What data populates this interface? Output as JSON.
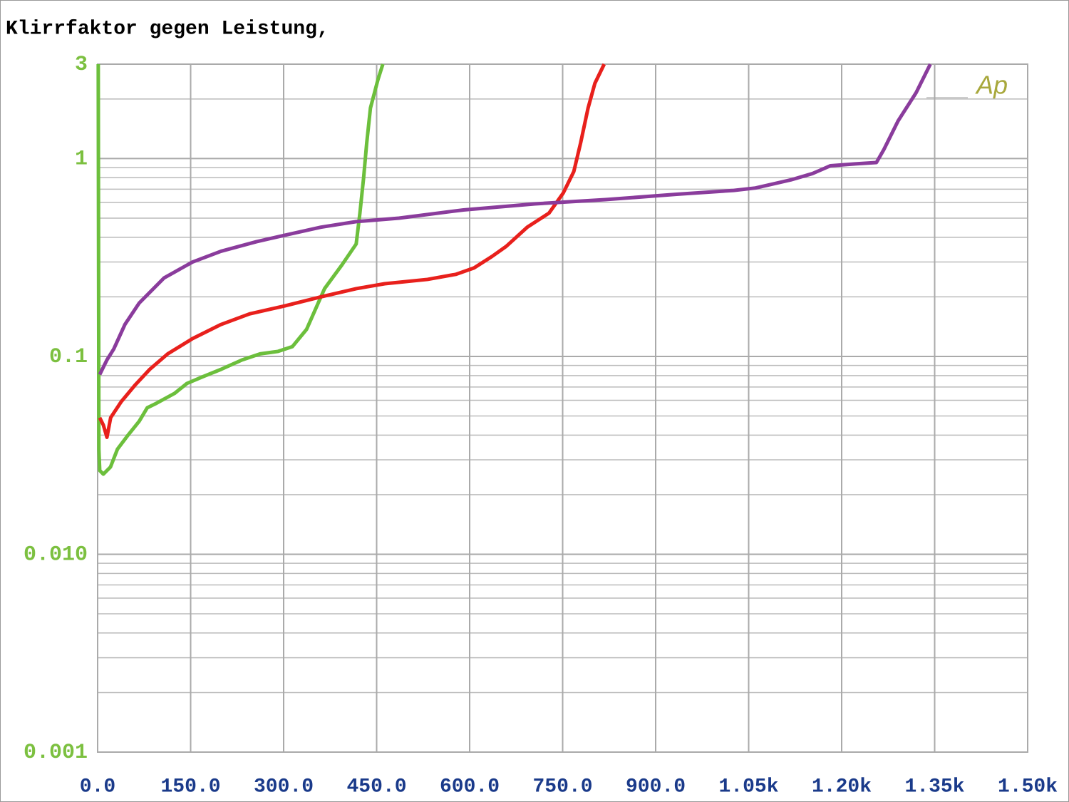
{
  "chart_data": {
    "type": "line",
    "title": "Klirrfaktor gegen Leistung,",
    "annotation": "Ap",
    "xlim": [
      0,
      1500
    ],
    "xticks": [
      {
        "value": 0,
        "label": "0.0"
      },
      {
        "value": 150,
        "label": "150.0"
      },
      {
        "value": 300,
        "label": "300.0"
      },
      {
        "value": 450,
        "label": "450.0"
      },
      {
        "value": 600,
        "label": "600.0"
      },
      {
        "value": 750,
        "label": "750.0"
      },
      {
        "value": 900,
        "label": "900.0"
      },
      {
        "value": 1050,
        "label": "1.05k"
      },
      {
        "value": 1200,
        "label": "1.20k"
      },
      {
        "value": 1350,
        "label": "1.35k"
      },
      {
        "value": 1500,
        "label": "1.50k"
      }
    ],
    "ylim": [
      0.001,
      3
    ],
    "log_y": true,
    "grid": true,
    "yticks": [
      0.001,
      {
        "value": 0.01,
        "label": "0.010"
      },
      0.1,
      1,
      3
    ],
    "yminorticks": [
      0.002,
      0.003,
      0.004,
      0.005,
      0.006,
      0.007,
      0.008,
      0.009,
      0.02,
      0.03,
      0.04,
      0.05,
      0.06,
      0.07,
      0.08,
      0.09,
      0.2,
      0.3,
      0.4,
      0.5,
      0.6,
      0.7,
      0.8,
      0.9,
      2
    ],
    "series": [
      {
        "color": "#6cbf3c",
        "x": [
          1,
          2,
          3.4,
          9.2,
          20.7,
          32,
          49,
          67,
          80,
          95,
          124,
          144,
          170,
          199,
          233,
          262,
          291,
          314,
          337,
          366,
          394,
          417,
          423,
          429,
          434,
          440,
          452,
          460
        ],
        "values": [
          3,
          0.034,
          0.0265,
          0.0254,
          0.0276,
          0.034,
          0.04,
          0.047,
          0.055,
          0.058,
          0.065,
          0.073,
          0.079,
          0.086,
          0.096,
          0.103,
          0.106,
          0.112,
          0.137,
          0.22,
          0.29,
          0.37,
          0.53,
          0.8,
          1.2,
          1.8,
          2.5,
          3
        ]
      },
      {
        "color": "#e8201c",
        "x": [
          3.4,
          9.2,
          15,
          21,
          38,
          61,
          84,
          113,
          153,
          199,
          245,
          302,
          360,
          417,
          463,
          532,
          578,
          607,
          636,
          659,
          693,
          728,
          751,
          768,
          779,
          791,
          802,
          817
        ],
        "values": [
          0.049,
          0.045,
          0.039,
          0.049,
          0.059,
          0.072,
          0.086,
          0.103,
          0.123,
          0.145,
          0.164,
          0.18,
          0.2,
          0.22,
          0.233,
          0.245,
          0.26,
          0.28,
          0.32,
          0.36,
          0.45,
          0.53,
          0.67,
          0.86,
          1.2,
          1.8,
          2.4,
          3
        ]
      },
      {
        "color": "#8a3c9c",
        "x": [
          3.4,
          15,
          26,
          44,
          67,
          107,
          153,
          199,
          256,
          302,
          360,
          417,
          486,
          590,
          705,
          819,
          934,
          1026,
          1061,
          1118,
          1153,
          1182,
          1222,
          1256,
          1268,
          1291,
          1320,
          1343
        ],
        "values": [
          0.081,
          0.096,
          0.109,
          0.145,
          0.186,
          0.249,
          0.3,
          0.34,
          0.38,
          0.41,
          0.45,
          0.48,
          0.5,
          0.55,
          0.59,
          0.62,
          0.66,
          0.69,
          0.71,
          0.78,
          0.84,
          0.92,
          0.94,
          0.955,
          1.11,
          1.55,
          2.15,
          3
        ]
      }
    ]
  }
}
